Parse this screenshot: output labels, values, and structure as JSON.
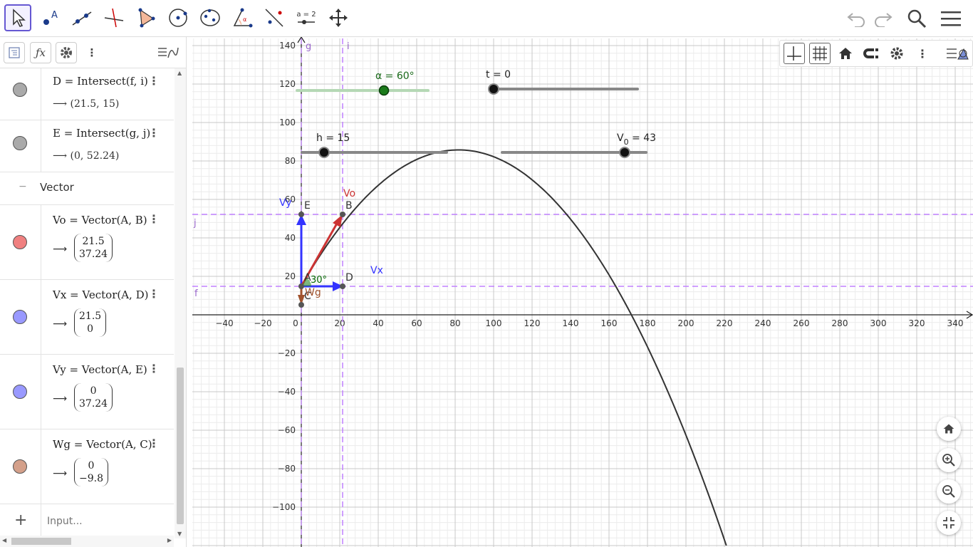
{
  "toolbar": {
    "tools": [
      "move-tool",
      "point-tool",
      "line-tool",
      "perpendicular-tool",
      "polygon-tool",
      "circle-tool",
      "conic-tool",
      "angle-tool",
      "reflect-tool",
      "slider-tool",
      "move-graphics-tool"
    ],
    "slider_tool_label": "a = 2"
  },
  "algebra": {
    "rows": [
      {
        "def": "D = Intersect(f, i)",
        "value": "(21.5, 15)",
        "color": "#aaaaaa"
      },
      {
        "def": "E = Intersect(g, j)",
        "value": "(0, 52.24)",
        "color": "#aaaaaa"
      }
    ],
    "group_label": "Vector",
    "group_toggle": "−",
    "arrow": "⟶",
    "vectors": [
      {
        "def": "Vo = Vector(A, B)",
        "top": "21.5",
        "bottom": "37.24",
        "color": "#f08080"
      },
      {
        "def": "Vx = Vector(A, D)",
        "top": "21.5",
        "bottom": "0",
        "color": "#9999ff"
      },
      {
        "def": "Vy = Vector(A, E)",
        "top": "0",
        "bottom": "37.24",
        "color": "#9999ff"
      },
      {
        "def": "Wg = Vector(A, C)",
        "top": "0",
        "bottom": "−9.8",
        "color": "#d4a08a"
      }
    ],
    "input_placeholder": "Input...",
    "add_label": "+"
  },
  "graph": {
    "x_ticks": [
      "−40",
      "−20",
      "0",
      "20",
      "40",
      "60",
      "80",
      "100",
      "120",
      "140",
      "160",
      "180",
      "200",
      "220",
      "240",
      "260",
      "280",
      "300",
      "320",
      "340"
    ],
    "y_ticks": [
      "140",
      "120",
      "100",
      "80",
      "60",
      "40",
      "20",
      "−20",
      "−40",
      "−60",
      "−80",
      "−100"
    ],
    "slider_alpha": "α = 60°",
    "slider_t": "t = 0",
    "slider_h": "h = 15",
    "slider_v0_main": "V",
    "slider_v0_sub": "0",
    "slider_v0_rest": " = 43",
    "line_g": "g",
    "line_i": "i",
    "line_j": "j",
    "line_f": "f",
    "pt_E": "E",
    "pt_B": "B",
    "pt_A": "A",
    "pt_D": "D",
    "pt_C": "C",
    "lbl_Vo": "Vo",
    "lbl_Vy": "Vy",
    "lbl_Vx": "Vx",
    "lbl_Wg": "Wg",
    "angle_lbl": "30°",
    "colors": {
      "curve": "#333333",
      "dashed": "#c080ff",
      "vo": "#cc3333",
      "vxy": "#3333ff",
      "wg": "#a0522d",
      "alpha": "#006400"
    }
  }
}
